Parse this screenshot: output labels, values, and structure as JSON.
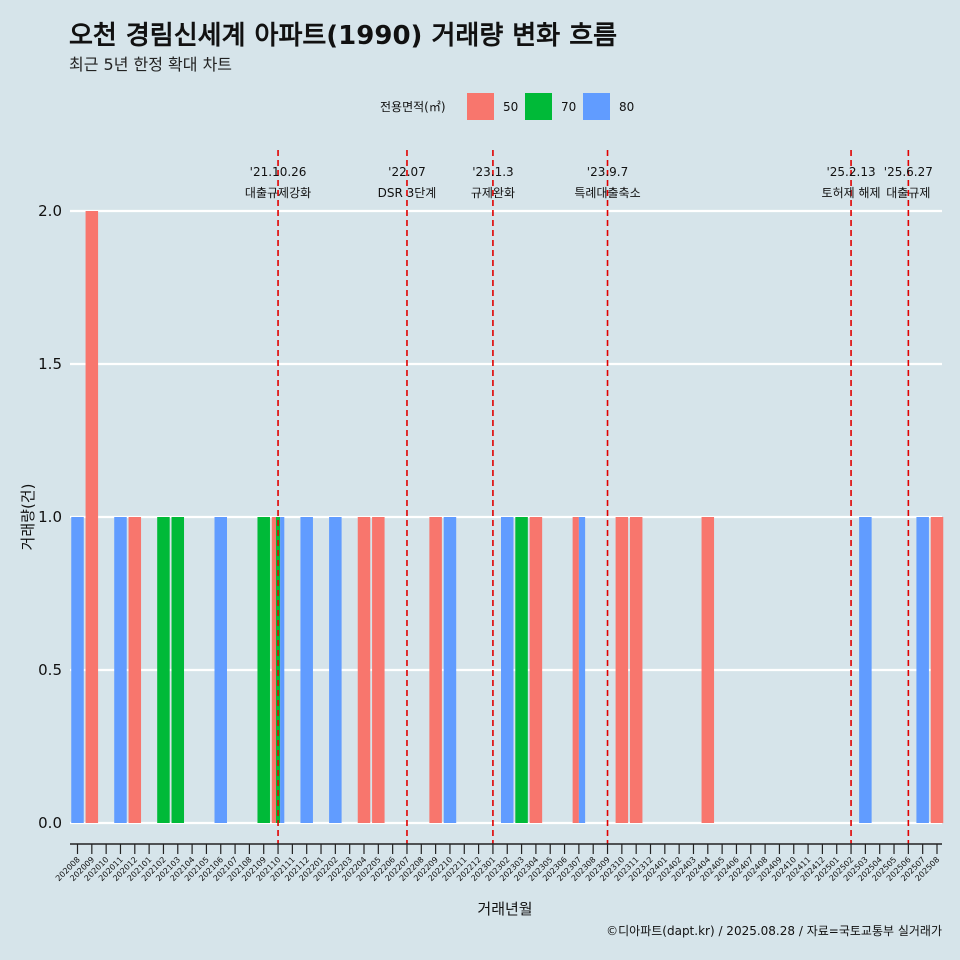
{
  "colors": {
    "background": "#d6e4ea",
    "grid": "#ffffff",
    "area_50": "#f8766d",
    "area_70": "#00ba38",
    "area_80": "#619cff",
    "event_line": "#e00000"
  },
  "chart_data": {
    "type": "bar",
    "title": "오천 경림신세계 아파트(1990) 거래량 변화 흐름",
    "subtitle": "최근 5년 한정 확대 차트",
    "xlabel": "거래년월",
    "ylabel": "거래량(건)",
    "ylim": [
      0,
      2.1
    ],
    "yticks": [
      "0.0",
      "0.5",
      "1.0",
      "1.5",
      "2.0"
    ],
    "grid": true,
    "legend": {
      "position": "top",
      "title": "전용면적(㎡)",
      "entries": [
        {
          "label": "50",
          "color_key": "area_50"
        },
        {
          "label": "70",
          "color_key": "area_70"
        },
        {
          "label": "80",
          "color_key": "area_80"
        }
      ]
    },
    "categories": [
      "202008",
      "202009",
      "202010",
      "202011",
      "202012",
      "202101",
      "202102",
      "202103",
      "202104",
      "202105",
      "202106",
      "202107",
      "202108",
      "202109",
      "202110",
      "202111",
      "202112",
      "202201",
      "202202",
      "202203",
      "202204",
      "202205",
      "202206",
      "202207",
      "202208",
      "202209",
      "202210",
      "202211",
      "202212",
      "202301",
      "202302",
      "202303",
      "202304",
      "202305",
      "202306",
      "202307",
      "202308",
      "202309",
      "202310",
      "202311",
      "202312",
      "202401",
      "202402",
      "202403",
      "202404",
      "202405",
      "202406",
      "202407",
      "202408",
      "202409",
      "202410",
      "202411",
      "202412",
      "202501",
      "202502",
      "202503",
      "202504",
      "202505",
      "202506",
      "202507",
      "202508"
    ],
    "series": [
      {
        "name": "80",
        "color_key": "area_80",
        "points": [
          {
            "x": "202008",
            "y": 1
          },
          {
            "x": "202011",
            "y": 1
          },
          {
            "x": "202106",
            "y": 1
          },
          {
            "x": "202110",
            "y": 1
          },
          {
            "x": "202112",
            "y": 1
          },
          {
            "x": "202202",
            "y": 1
          },
          {
            "x": "202210",
            "y": 1
          },
          {
            "x": "202302",
            "y": 1
          },
          {
            "x": "202307",
            "y": 1
          },
          {
            "x": "202503",
            "y": 1
          },
          {
            "x": "202507",
            "y": 1
          }
        ]
      },
      {
        "name": "50",
        "color_key": "area_50",
        "points": [
          {
            "x": "202009",
            "y": 2
          },
          {
            "x": "202012",
            "y": 1
          },
          {
            "x": "202110",
            "y": 1
          },
          {
            "x": "202204",
            "y": 1
          },
          {
            "x": "202205",
            "y": 1
          },
          {
            "x": "202209",
            "y": 1
          },
          {
            "x": "202304",
            "y": 1
          },
          {
            "x": "202307",
            "y": 1
          },
          {
            "x": "202310",
            "y": 1
          },
          {
            "x": "202311",
            "y": 1
          },
          {
            "x": "202404",
            "y": 1
          },
          {
            "x": "202508",
            "y": 1
          }
        ]
      },
      {
        "name": "70",
        "color_key": "area_70",
        "points": [
          {
            "x": "202102",
            "y": 1
          },
          {
            "x": "202103",
            "y": 1
          },
          {
            "x": "202109",
            "y": 1
          },
          {
            "x": "202110",
            "y": 1
          },
          {
            "x": "202303",
            "y": 1
          }
        ]
      }
    ],
    "events": [
      {
        "date": "'21.10.26",
        "label": "대출규제강화",
        "x": "202110",
        "offset": 0.0
      },
      {
        "date": "'22.07",
        "label": "DSR 3단계",
        "x": "202207",
        "offset": 0.0
      },
      {
        "date": "'23.1.3",
        "label": "규제완화",
        "x": "202301",
        "offset": 0.0
      },
      {
        "date": "'23.9.7",
        "label": "특례대출축소",
        "x": "202309",
        "offset": 0.0
      },
      {
        "date": "'25.2.13",
        "label": "토허제 해제",
        "x": "202502",
        "offset": 0.0
      },
      {
        "date": "'25.6.27",
        "label": "대출규제",
        "x": "202506",
        "offset": 0.0
      }
    ]
  },
  "caption": "©디아파트(dapt.kr) / 2025.08.28 / 자료=국토교통부 실거래가"
}
